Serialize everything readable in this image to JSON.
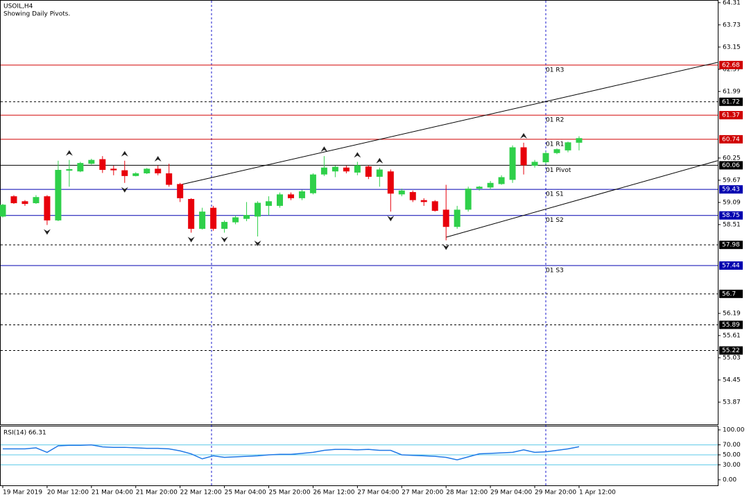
{
  "chart_data": [
    {
      "type": "candlestick",
      "title": "USOIL,H4",
      "subtitle": "Showing Daily Pivots.",
      "categories": [
        "19 Mar 2019",
        null,
        null,
        null,
        "20 Mar 12:00",
        null,
        null,
        null,
        "21 Mar 04:00",
        null,
        null,
        null,
        "21 Mar 20:00",
        null,
        null,
        null,
        "22 Mar 12:00",
        null,
        null,
        null,
        "25 Mar 04:00",
        null,
        null,
        null,
        "25 Mar 20:00",
        null,
        null,
        null,
        "26 Mar 12:00",
        null,
        null,
        null,
        "27 Mar 04:00",
        null,
        null,
        null,
        "27 Mar 20:00",
        null,
        null,
        null,
        "28 Mar 12:00",
        null,
        null,
        null,
        "29 Mar 04:00",
        null,
        null,
        null,
        "29 Mar 20:00",
        null,
        null,
        null,
        "1 Apr 12:00"
      ],
      "open": [
        58.72,
        59.25,
        59.12,
        59.07,
        59.25,
        58.62,
        59.92,
        59.9,
        60.1,
        60.22,
        59.97,
        59.93,
        59.78,
        59.85,
        59.97,
        59.85,
        59.57,
        59.18,
        58.4,
        58.95,
        58.4,
        58.57,
        58.66,
        58.72,
        59.0,
        59.0,
        59.3,
        59.2,
        59.33,
        59.82,
        59.9,
        60.0,
        59.87,
        60.03,
        59.76,
        59.9,
        59.3,
        59.36,
        59.15,
        59.12,
        58.9,
        58.45,
        58.9,
        59.45,
        59.48,
        59.57,
        59.68,
        60.53,
        60.05,
        60.14,
        60.38,
        60.45,
        60.65
      ],
      "high": [
        59.05,
        59.28,
        59.15,
        59.28,
        59.28,
        60.18,
        60.2,
        60.15,
        60.23,
        60.3,
        60.05,
        60.18,
        59.88,
        59.99,
        60.05,
        60.1,
        59.6,
        59.2,
        58.95,
        59.0,
        58.62,
        58.75,
        59.1,
        59.12,
        59.25,
        59.35,
        59.35,
        59.42,
        59.85,
        60.3,
        60.05,
        60.05,
        60.15,
        60.06,
        60.0,
        59.95,
        59.45,
        59.4,
        59.2,
        59.15,
        59.55,
        59.0,
        59.5,
        59.52,
        59.65,
        59.8,
        60.58,
        60.65,
        60.2,
        60.42,
        60.5,
        60.68,
        60.82
      ],
      "low": [
        58.7,
        59.05,
        59.0,
        59.05,
        58.5,
        58.6,
        59.5,
        59.88,
        60.08,
        59.86,
        59.8,
        59.6,
        59.77,
        59.83,
        59.8,
        59.5,
        59.1,
        58.3,
        58.38,
        58.35,
        58.3,
        58.52,
        58.6,
        58.2,
        58.75,
        58.95,
        59.15,
        59.15,
        59.3,
        59.78,
        59.75,
        59.85,
        59.8,
        59.7,
        59.5,
        58.85,
        59.25,
        59.1,
        59.0,
        58.85,
        58.1,
        58.4,
        58.85,
        59.4,
        59.43,
        59.55,
        59.6,
        59.82,
        60.0,
        60.1,
        60.35,
        60.4,
        60.45
      ],
      "close": [
        59.03,
        59.07,
        59.05,
        59.23,
        58.62,
        59.94,
        59.96,
        60.12,
        60.2,
        59.94,
        59.93,
        59.78,
        59.85,
        59.97,
        59.85,
        59.55,
        59.2,
        58.4,
        58.85,
        58.4,
        58.58,
        58.7,
        58.76,
        59.08,
        59.12,
        59.3,
        59.2,
        59.38,
        59.82,
        60.0,
        60.02,
        59.9,
        60.06,
        59.76,
        59.95,
        59.32,
        59.4,
        59.15,
        59.1,
        58.87,
        58.45,
        58.9,
        59.45,
        59.5,
        59.6,
        59.75,
        60.53,
        60.06,
        60.15,
        60.38,
        60.48,
        60.66,
        60.77
      ],
      "up_color": "#2fd04a",
      "down_color": "#e8000b",
      "fractals_up": [
        6,
        11,
        14,
        29,
        32,
        34,
        47
      ],
      "fractals_down": [
        4,
        11,
        17,
        20,
        23,
        35,
        40
      ],
      "ylim": [
        53.29,
        64.38
      ],
      "yticks": [
        64.31,
        63.73,
        63.15,
        62.57,
        61.99,
        60.25,
        59.67,
        59.09,
        58.51,
        56.19,
        55.61,
        55.03,
        54.45,
        53.87
      ],
      "levels": [
        {
          "name": "01 R3",
          "value": 62.68,
          "color": "#d00000",
          "style": "solid"
        },
        {
          "value": 61.72,
          "color": "#000000",
          "style": "dotted"
        },
        {
          "name": "01 R2",
          "value": 61.37,
          "color": "#d00000",
          "style": "solid"
        },
        {
          "name": "01 R1",
          "value": 60.74,
          "color": "#d00000",
          "style": "solid"
        },
        {
          "name": "01 Pivot",
          "value": 60.06,
          "color": "#000000",
          "style": "solid"
        },
        {
          "name": "01 S1",
          "value": 59.43,
          "color": "#0000b0",
          "style": "solid"
        },
        {
          "name": "01 S2",
          "value": 58.75,
          "color": "#0000b0",
          "style": "solid"
        },
        {
          "value": 57.98,
          "color": "#000000",
          "style": "dotted"
        },
        {
          "name": "01 S3",
          "value": 57.44,
          "color": "#0000b0",
          "style": "solid"
        },
        {
          "value": 56.7,
          "color": "#000000",
          "style": "dotted"
        },
        {
          "value": 55.89,
          "color": "#000000",
          "style": "dotted"
        },
        {
          "value": 55.22,
          "color": "#000000",
          "style": "dotted"
        }
      ],
      "trendlines": [
        {
          "x": [
            16,
            64.5
          ],
          "y": [
            59.55,
            62.75
          ]
        },
        {
          "x": [
            40,
            64.5
          ],
          "y": [
            58.18,
            60.18
          ]
        }
      ]
    },
    {
      "type": "line",
      "title": "RSI(14) 66.31",
      "color": "#1e78e6",
      "values": [
        62,
        62,
        62,
        64,
        55,
        68,
        69,
        69,
        70,
        66,
        65,
        65,
        64,
        63,
        63,
        62,
        58,
        52,
        42,
        48,
        45,
        46,
        47,
        48,
        50,
        51,
        51,
        53,
        55,
        59,
        61,
        61,
        60,
        61,
        59,
        59,
        50,
        49,
        48,
        47,
        45,
        40,
        46,
        52,
        53,
        54,
        55,
        60,
        55,
        56,
        59,
        62,
        66.31
      ],
      "ylim": [
        -11.1,
        108.3
      ],
      "yticks": [
        {
          "value": 100,
          "label": "100.00"
        },
        {
          "value": 70,
          "label": "70.00"
        },
        {
          "value": 50,
          "label": "50.00"
        },
        {
          "value": 30,
          "label": "30.00"
        },
        {
          "value": 0,
          "label": "0.00"
        }
      ],
      "levels": [
        70,
        50,
        30
      ]
    }
  ]
}
